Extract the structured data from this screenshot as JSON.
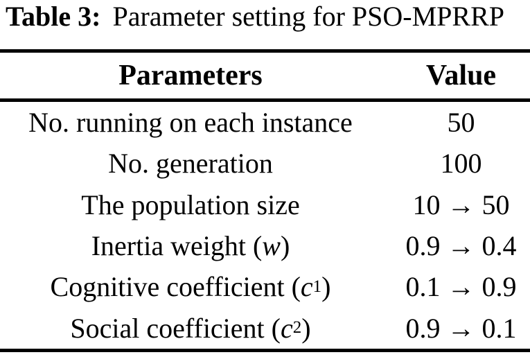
{
  "caption": {
    "label": "Table 3:",
    "text": "Parameter setting for PSO-MPRRP"
  },
  "table": {
    "headers": {
      "parameter": "Parameters",
      "value": "Value"
    },
    "rows": [
      {
        "pre": "No. running on each instance",
        "var": "",
        "sub": "",
        "post": "",
        "value": "50"
      },
      {
        "pre": "No. generation",
        "var": "",
        "sub": "",
        "post": "",
        "value": "100"
      },
      {
        "pre": "The population size",
        "var": "",
        "sub": "",
        "post": "",
        "value": "10 → 50"
      },
      {
        "pre": "Inertia weight (",
        "var": "w",
        "sub": "",
        "post": ")",
        "value": "0.9 → 0.4"
      },
      {
        "pre": "Cognitive coefficient (",
        "var": "c",
        "sub": "1",
        "post": ")",
        "value": "0.1 → 0.9"
      },
      {
        "pre": "Social coefficient (",
        "var": "c",
        "sub": "2",
        "post": ")",
        "value": "0.9 → 0.1"
      }
    ]
  },
  "colors": {
    "text": "#000000",
    "background": "#ffffff",
    "rule": "#000000"
  }
}
